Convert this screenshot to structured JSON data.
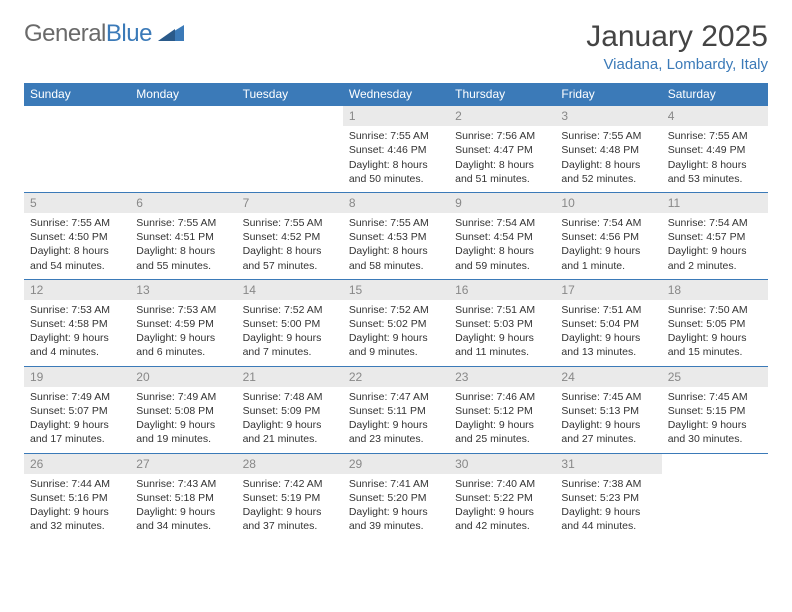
{
  "brand": {
    "part1": "General",
    "part2": "Blue"
  },
  "title": "January 2025",
  "location": "Viadana, Lombardy, Italy",
  "colors": {
    "header_bg": "#3b7ab8",
    "daynum_bg": "#eaeaea",
    "daynum_color": "#888888",
    "text_color": "#333333",
    "brand_gray": "#6a6a6a"
  },
  "weekday_labels": [
    "Sunday",
    "Monday",
    "Tuesday",
    "Wednesday",
    "Thursday",
    "Friday",
    "Saturday"
  ],
  "weeks": [
    {
      "days": [
        null,
        null,
        null,
        {
          "n": "1",
          "sunrise": "7:55 AM",
          "sunset": "4:46 PM",
          "day_h": "8",
          "day_m": "50"
        },
        {
          "n": "2",
          "sunrise": "7:56 AM",
          "sunset": "4:47 PM",
          "day_h": "8",
          "day_m": "51"
        },
        {
          "n": "3",
          "sunrise": "7:55 AM",
          "sunset": "4:48 PM",
          "day_h": "8",
          "day_m": "52"
        },
        {
          "n": "4",
          "sunrise": "7:55 AM",
          "sunset": "4:49 PM",
          "day_h": "8",
          "day_m": "53"
        }
      ]
    },
    {
      "days": [
        {
          "n": "5",
          "sunrise": "7:55 AM",
          "sunset": "4:50 PM",
          "day_h": "8",
          "day_m": "54"
        },
        {
          "n": "6",
          "sunrise": "7:55 AM",
          "sunset": "4:51 PM",
          "day_h": "8",
          "day_m": "55"
        },
        {
          "n": "7",
          "sunrise": "7:55 AM",
          "sunset": "4:52 PM",
          "day_h": "8",
          "day_m": "57"
        },
        {
          "n": "8",
          "sunrise": "7:55 AM",
          "sunset": "4:53 PM",
          "day_h": "8",
          "day_m": "58"
        },
        {
          "n": "9",
          "sunrise": "7:54 AM",
          "sunset": "4:54 PM",
          "day_h": "8",
          "day_m": "59"
        },
        {
          "n": "10",
          "sunrise": "7:54 AM",
          "sunset": "4:56 PM",
          "day_h": "9",
          "day_m": "1"
        },
        {
          "n": "11",
          "sunrise": "7:54 AM",
          "sunset": "4:57 PM",
          "day_h": "9",
          "day_m": "2"
        }
      ]
    },
    {
      "days": [
        {
          "n": "12",
          "sunrise": "7:53 AM",
          "sunset": "4:58 PM",
          "day_h": "9",
          "day_m": "4"
        },
        {
          "n": "13",
          "sunrise": "7:53 AM",
          "sunset": "4:59 PM",
          "day_h": "9",
          "day_m": "6"
        },
        {
          "n": "14",
          "sunrise": "7:52 AM",
          "sunset": "5:00 PM",
          "day_h": "9",
          "day_m": "7"
        },
        {
          "n": "15",
          "sunrise": "7:52 AM",
          "sunset": "5:02 PM",
          "day_h": "9",
          "day_m": "9"
        },
        {
          "n": "16",
          "sunrise": "7:51 AM",
          "sunset": "5:03 PM",
          "day_h": "9",
          "day_m": "11"
        },
        {
          "n": "17",
          "sunrise": "7:51 AM",
          "sunset": "5:04 PM",
          "day_h": "9",
          "day_m": "13"
        },
        {
          "n": "18",
          "sunrise": "7:50 AM",
          "sunset": "5:05 PM",
          "day_h": "9",
          "day_m": "15"
        }
      ]
    },
    {
      "days": [
        {
          "n": "19",
          "sunrise": "7:49 AM",
          "sunset": "5:07 PM",
          "day_h": "9",
          "day_m": "17"
        },
        {
          "n": "20",
          "sunrise": "7:49 AM",
          "sunset": "5:08 PM",
          "day_h": "9",
          "day_m": "19"
        },
        {
          "n": "21",
          "sunrise": "7:48 AM",
          "sunset": "5:09 PM",
          "day_h": "9",
          "day_m": "21"
        },
        {
          "n": "22",
          "sunrise": "7:47 AM",
          "sunset": "5:11 PM",
          "day_h": "9",
          "day_m": "23"
        },
        {
          "n": "23",
          "sunrise": "7:46 AM",
          "sunset": "5:12 PM",
          "day_h": "9",
          "day_m": "25"
        },
        {
          "n": "24",
          "sunrise": "7:45 AM",
          "sunset": "5:13 PM",
          "day_h": "9",
          "day_m": "27"
        },
        {
          "n": "25",
          "sunrise": "7:45 AM",
          "sunset": "5:15 PM",
          "day_h": "9",
          "day_m": "30"
        }
      ]
    },
    {
      "days": [
        {
          "n": "26",
          "sunrise": "7:44 AM",
          "sunset": "5:16 PM",
          "day_h": "9",
          "day_m": "32"
        },
        {
          "n": "27",
          "sunrise": "7:43 AM",
          "sunset": "5:18 PM",
          "day_h": "9",
          "day_m": "34"
        },
        {
          "n": "28",
          "sunrise": "7:42 AM",
          "sunset": "5:19 PM",
          "day_h": "9",
          "day_m": "37"
        },
        {
          "n": "29",
          "sunrise": "7:41 AM",
          "sunset": "5:20 PM",
          "day_h": "9",
          "day_m": "39"
        },
        {
          "n": "30",
          "sunrise": "7:40 AM",
          "sunset": "5:22 PM",
          "day_h": "9",
          "day_m": "42"
        },
        {
          "n": "31",
          "sunrise": "7:38 AM",
          "sunset": "5:23 PM",
          "day_h": "9",
          "day_m": "44"
        },
        null
      ]
    }
  ]
}
